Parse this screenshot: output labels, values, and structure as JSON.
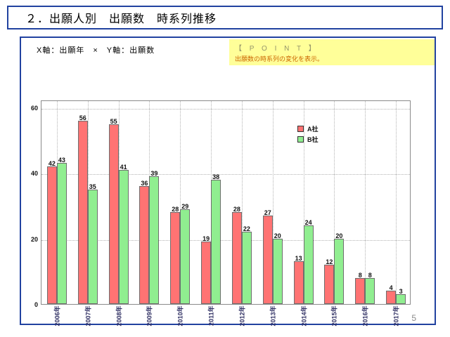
{
  "title_bar": {
    "text": "２．出願人別　出願数　時系列推移"
  },
  "page": {
    "number": "5"
  },
  "panel": {
    "axis_note": "X軸：出願年　×　Y軸：出願数",
    "point_box": {
      "heading": "【 P O I N T 】",
      "body": "出願数の時系列の変化を表示。",
      "bg_color": "#ffff99",
      "heading_color": "#94946a",
      "body_color": "#cc6600"
    }
  },
  "colors": {
    "border_blue": "#2142a0",
    "series_a": "#ff7373",
    "series_b": "#90ee90",
    "bar_border": "#6e6e6e",
    "x_label_color": "#333366",
    "gridline": "#b3b3b3"
  },
  "chart_data": {
    "type": "bar",
    "title": "",
    "xlabel": "出願年",
    "ylabel": "出願数",
    "categories": [
      "2006年",
      "2007年",
      "2008年",
      "2009年",
      "2010年",
      "2011年",
      "2012年",
      "2013年",
      "2014年",
      "2015年",
      "2016年",
      "2017年"
    ],
    "series": [
      {
        "name": "A社",
        "color": "#ff7373",
        "values": [
          42,
          56,
          55,
          36,
          28,
          19,
          28,
          27,
          13,
          12,
          8,
          4
        ]
      },
      {
        "name": "B社",
        "color": "#90ee90",
        "values": [
          43,
          35,
          41,
          39,
          29,
          38,
          22,
          20,
          24,
          20,
          8,
          3
        ]
      }
    ],
    "ylim": [
      0,
      62.4
    ],
    "yticks": [
      0,
      20,
      40,
      60
    ],
    "grid": "dotted-horizontal-and-vertical",
    "legend_position": "inside-top-right",
    "bar_value_labels": true
  }
}
